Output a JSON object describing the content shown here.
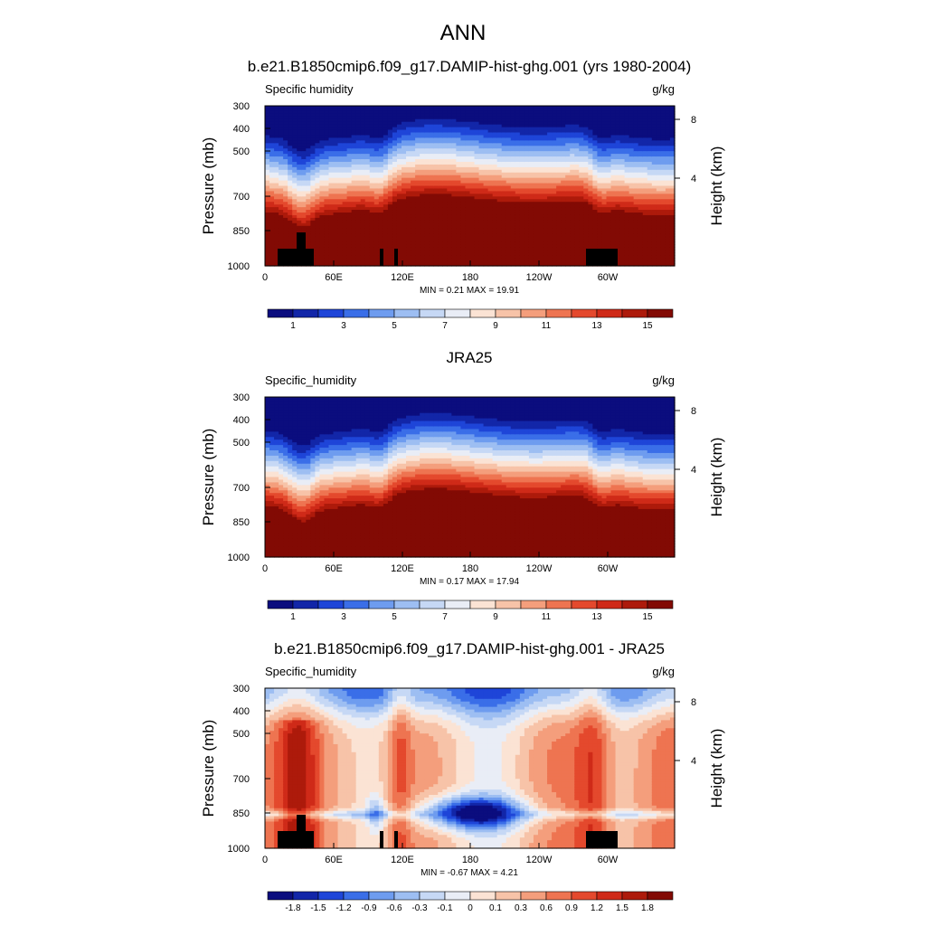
{
  "figure": {
    "title": "ANN"
  },
  "chart_data": [
    {
      "type": "heatmap",
      "title": "b.e21.B1850cmip6.f09_g17.DAMIP-hist-ghg.001 (yrs 1980-2004)",
      "left_label": "Specific humidity",
      "units": "g/kg",
      "ylabel": "Pressure (mb)",
      "y2label": "Height (km)",
      "y_ticks": [
        "300",
        "400",
        "500",
        "700",
        "850",
        "1000"
      ],
      "y2_ticks": [
        "8",
        "4"
      ],
      "x_ticks": [
        "0",
        "60E",
        "120E",
        "180",
        "120W",
        "60W"
      ],
      "stats": "MIN =   0.21  MAX =  19.91",
      "colorbar_labels": [
        "1",
        "3",
        "5",
        "7",
        "9",
        "11",
        "13",
        "15"
      ],
      "colors": [
        "#0b0d7e",
        "#1226a8",
        "#1e45d8",
        "#3a6ee8",
        "#6e9cef",
        "#9dbef2",
        "#c6d8f5",
        "#e9edf6",
        "#fbe3d4",
        "#f7c3a8",
        "#f49e7c",
        "#ee7451",
        "#e4492d",
        "#cf2a18",
        "#ad1a0b",
        "#820a04"
      ],
      "field": "humidity",
      "max_value": 19.91,
      "min_value": 0.21
    },
    {
      "type": "heatmap",
      "title": "JRA25",
      "left_label": "Specific_humidity",
      "units": "g/kg",
      "ylabel": "Pressure (mb)",
      "y2label": "Height (km)",
      "y_ticks": [
        "300",
        "400",
        "500",
        "700",
        "850",
        "1000"
      ],
      "y2_ticks": [
        "8",
        "4"
      ],
      "x_ticks": [
        "0",
        "60E",
        "120E",
        "180",
        "120W",
        "60W"
      ],
      "stats": "MIN =   0.17  MAX =  17.94",
      "colorbar_labels": [
        "1",
        "3",
        "5",
        "7",
        "9",
        "11",
        "13",
        "15"
      ],
      "colors": [
        "#0b0d7e",
        "#1226a8",
        "#1e45d8",
        "#3a6ee8",
        "#6e9cef",
        "#9dbef2",
        "#c6d8f5",
        "#e9edf6",
        "#fbe3d4",
        "#f7c3a8",
        "#f49e7c",
        "#ee7451",
        "#e4492d",
        "#cf2a18",
        "#ad1a0b",
        "#820a04"
      ],
      "field": "humidity",
      "max_value": 17.94,
      "min_value": 0.17
    },
    {
      "type": "heatmap",
      "title": "b.e21.B1850cmip6.f09_g17.DAMIP-hist-ghg.001 - JRA25",
      "left_label": "Specific_humidity",
      "units": "g/kg",
      "ylabel": "Pressure (mb)",
      "y2label": "Height (km)",
      "y_ticks": [
        "300",
        "400",
        "500",
        "700",
        "850",
        "1000"
      ],
      "y2_ticks": [
        "8",
        "4"
      ],
      "x_ticks": [
        "0",
        "60E",
        "120E",
        "180",
        "120W",
        "60W"
      ],
      "stats": "MIN =  -0.67  MAX =   4.21",
      "colorbar_labels": [
        "-1.8",
        "-1.5",
        "-1.2",
        "-0.9",
        "-0.6",
        "-0.3",
        "-0.1",
        "0",
        "0.1",
        "0.3",
        "0.6",
        "0.9",
        "1.2",
        "1.5",
        "1.8"
      ],
      "colors": [
        "#0b0d7e",
        "#1226a8",
        "#1e45d8",
        "#3a6ee8",
        "#6e9cef",
        "#9dbef2",
        "#c6d8f5",
        "#e9edf6",
        "#fbe3d4",
        "#f7c3a8",
        "#f49e7c",
        "#ee7451",
        "#e4492d",
        "#cf2a18",
        "#ad1a0b",
        "#820a04"
      ],
      "field": "difference",
      "max_value": 4.21,
      "min_value": -0.67
    }
  ]
}
